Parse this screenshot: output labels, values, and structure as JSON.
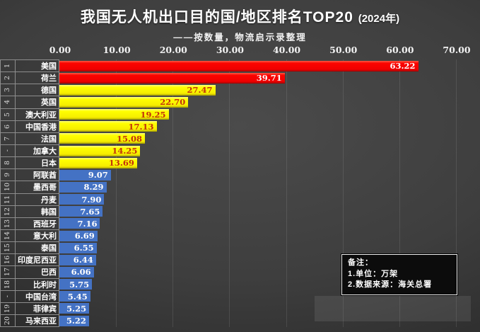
{
  "header": {
    "title": "我国无人机出口目的国/地区排名TOP20",
    "year": "(2024年)",
    "subtitle": "——按数量，物流启示录整理"
  },
  "axis": {
    "ticks": [
      "0.00",
      "10.00",
      "20.00",
      "30.00",
      "40.00",
      "50.00",
      "60.00",
      "70.00"
    ]
  },
  "note": {
    "lines": [
      "备注：",
      "1.单位：万架",
      "2.数据来源：海关总署"
    ]
  },
  "chart_data": {
    "type": "bar",
    "orientation": "horizontal",
    "title": "我国无人机出口目的国/地区排名TOP20 (2024年)",
    "subtitle": "——按数量，物流启示录整理",
    "xlabel": "",
    "ylabel": "",
    "xlim": [
      0,
      70
    ],
    "x_ticks": [
      0,
      10,
      20,
      30,
      40,
      50,
      60,
      70
    ],
    "grid": true,
    "unit": "万架",
    "source": "海关总署",
    "bar_colors": {
      "red": "#fb0400",
      "yellow": "#ffff00",
      "blue": "#4472c4"
    },
    "value_label_colors": {
      "red": "#ffffff",
      "yellow": "#c3310c",
      "blue": "#ffffff"
    },
    "rows": [
      {
        "rank": "1",
        "label": "美国",
        "value": 63.22,
        "value_label": "63.22",
        "color": "red"
      },
      {
        "rank": "2",
        "label": "荷兰",
        "value": 39.71,
        "value_label": "39.71",
        "color": "red"
      },
      {
        "rank": "3",
        "label": "德国",
        "value": 27.47,
        "value_label": "27.47",
        "color": "yellow"
      },
      {
        "rank": "4",
        "label": "英国",
        "value": 22.7,
        "value_label": "22.70",
        "color": "yellow"
      },
      {
        "rank": "5",
        "label": "澳大利亚",
        "value": 19.25,
        "value_label": "19.25",
        "color": "yellow"
      },
      {
        "rank": "6",
        "label": "中国香港",
        "value": 17.13,
        "value_label": "17.13",
        "color": "yellow"
      },
      {
        "rank": "7",
        "label": "法国",
        "value": 15.08,
        "value_label": "15.08",
        "color": "yellow"
      },
      {
        "rank": "-",
        "label": "加拿大",
        "value": 14.25,
        "value_label": "14.25",
        "color": "yellow"
      },
      {
        "rank": "8",
        "label": "日本",
        "value": 13.69,
        "value_label": "13.69",
        "color": "yellow"
      },
      {
        "rank": "9",
        "label": "阿联酋",
        "value": 9.07,
        "value_label": "9.07",
        "color": "blue"
      },
      {
        "rank": "10",
        "label": "墨西哥",
        "value": 8.29,
        "value_label": "8.29",
        "color": "blue"
      },
      {
        "rank": "11",
        "label": "丹麦",
        "value": 7.9,
        "value_label": "7.90",
        "color": "blue"
      },
      {
        "rank": "12",
        "label": "韩国",
        "value": 7.65,
        "value_label": "7.65",
        "color": "blue"
      },
      {
        "rank": "13",
        "label": "西班牙",
        "value": 7.16,
        "value_label": "7.16",
        "color": "blue"
      },
      {
        "rank": "14",
        "label": "意大利",
        "value": 6.69,
        "value_label": "6.69",
        "color": "blue"
      },
      {
        "rank": "15",
        "label": "泰国",
        "value": 6.55,
        "value_label": "6.55",
        "color": "blue"
      },
      {
        "rank": "16",
        "label": "印度尼西亚",
        "value": 6.44,
        "value_label": "6.44",
        "color": "blue"
      },
      {
        "rank": "17",
        "label": "巴西",
        "value": 6.06,
        "value_label": "6.06",
        "color": "blue"
      },
      {
        "rank": "18",
        "label": "比利时",
        "value": 5.75,
        "value_label": "5.75",
        "color": "blue"
      },
      {
        "rank": "-",
        "label": "中国台湾",
        "value": 5.45,
        "value_label": "5.45",
        "color": "blue"
      },
      {
        "rank": "19",
        "label": "菲律宾",
        "value": 5.25,
        "value_label": "5.25",
        "color": "blue"
      },
      {
        "rank": "20",
        "label": "马来西亚",
        "value": 5.22,
        "value_label": "5.22",
        "color": "blue"
      }
    ]
  }
}
